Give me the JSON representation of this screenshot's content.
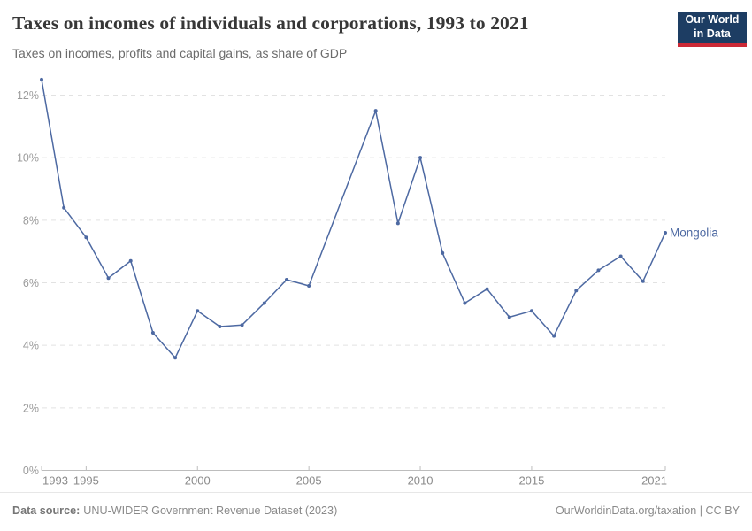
{
  "header": {
    "logo_line1": "Our World",
    "logo_line2": "in Data"
  },
  "chart_data": {
    "type": "line",
    "title": "Taxes on incomes of individuals and corporations, 1993 to 2021",
    "subtitle": "Taxes on incomes, profits and capital gains, as share of GDP",
    "xlabel": "",
    "ylabel": "",
    "xlim": [
      1993,
      2021
    ],
    "ylim": [
      0,
      12.5
    ],
    "x_ticks": [
      1993,
      1995,
      2000,
      2005,
      2010,
      2015,
      2021
    ],
    "y_ticks": [
      0,
      2,
      4,
      6,
      8,
      10,
      12
    ],
    "y_tick_suffix": "%",
    "grid": "horizontal-dashed",
    "legend_position": "end-of-line-label",
    "missing_years_note": "no data points for 2006 and 2007; line connects 2005 directly to 2008",
    "series": [
      {
        "name": "Mongolia",
        "color": "#4d69a2",
        "points": [
          {
            "year": 1993,
            "value": 12.5
          },
          {
            "year": 1994,
            "value": 8.4
          },
          {
            "year": 1995,
            "value": 7.45
          },
          {
            "year": 1996,
            "value": 6.15
          },
          {
            "year": 1997,
            "value": 6.7
          },
          {
            "year": 1998,
            "value": 4.4
          },
          {
            "year": 1999,
            "value": 3.6
          },
          {
            "year": 2000,
            "value": 5.1
          },
          {
            "year": 2001,
            "value": 4.6
          },
          {
            "year": 2002,
            "value": 4.65
          },
          {
            "year": 2003,
            "value": 5.35
          },
          {
            "year": 2004,
            "value": 6.1
          },
          {
            "year": 2005,
            "value": 5.9
          },
          {
            "year": 2008,
            "value": 11.5
          },
          {
            "year": 2009,
            "value": 7.9
          },
          {
            "year": 2010,
            "value": 10.0
          },
          {
            "year": 2011,
            "value": 6.95
          },
          {
            "year": 2012,
            "value": 5.35
          },
          {
            "year": 2013,
            "value": 5.8
          },
          {
            "year": 2014,
            "value": 4.9
          },
          {
            "year": 2015,
            "value": 5.1
          },
          {
            "year": 2016,
            "value": 4.3
          },
          {
            "year": 2017,
            "value": 5.75
          },
          {
            "year": 2018,
            "value": 6.4
          },
          {
            "year": 2019,
            "value": 6.85
          },
          {
            "year": 2020,
            "value": 6.05
          },
          {
            "year": 2021,
            "value": 7.6
          }
        ]
      }
    ]
  },
  "footer": {
    "source_label": "Data source:",
    "source_text": "UNU-WIDER Government Revenue Dataset (2023)",
    "credit": "OurWorldinData.org/taxation | CC BY"
  },
  "colors": {
    "line": "#4d69a2",
    "logo_background": "#1d3d63",
    "logo_accent": "#cc2936",
    "gridline": "#e2e2e2",
    "axis": "#bdbdbd",
    "tick_label": "#8a8a8a"
  }
}
